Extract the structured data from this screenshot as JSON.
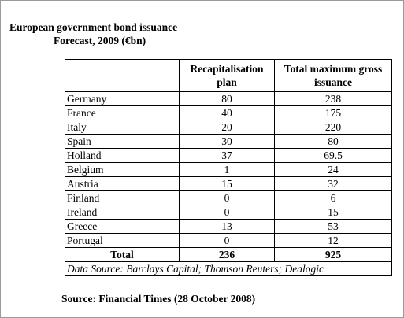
{
  "title": "European government bond issuance",
  "subtitle": "Forecast, 2009 (€bn)",
  "table": {
    "headers": [
      "",
      "Recapitalisation plan",
      "Total maximum gross issuance"
    ],
    "rows": [
      {
        "country": "Germany",
        "recap": "80",
        "total": "238"
      },
      {
        "country": "France",
        "recap": "40",
        "total": "175"
      },
      {
        "country": "Italy",
        "recap": "20",
        "total": "220"
      },
      {
        "country": "Spain",
        "recap": "30",
        "total": "80"
      },
      {
        "country": "Holland",
        "recap": "37",
        "total": "69.5"
      },
      {
        "country": "Belgium",
        "recap": "1",
        "total": "24"
      },
      {
        "country": "Austria",
        "recap": "15",
        "total": "32"
      },
      {
        "country": "Finland",
        "recap": "0",
        "total": "6"
      },
      {
        "country": "Ireland",
        "recap": "0",
        "total": "15"
      },
      {
        "country": "Greece",
        "recap": "13",
        "total": "53"
      },
      {
        "country": "Portugal",
        "recap": "0",
        "total": "12"
      }
    ],
    "total_row": {
      "label": "Total",
      "recap": "236",
      "total": "925"
    },
    "data_source": "Data Source: Barclays Capital; Thomson Reuters; Dealogic"
  },
  "footer_source": "Source: Financial Times (28 October 2008)"
}
